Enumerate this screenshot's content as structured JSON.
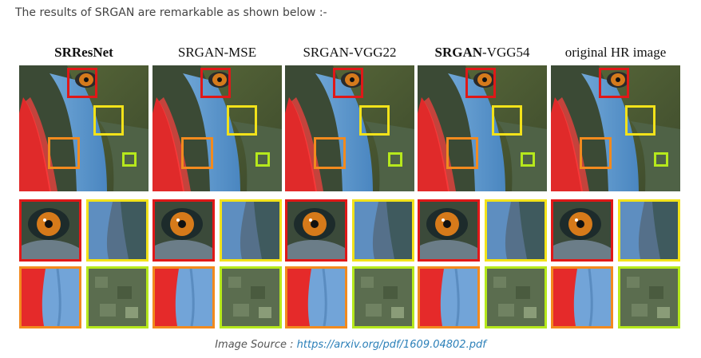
{
  "intro_text": "The results of SRGAN are remarkable as shown below :-",
  "figure": {
    "columns": [
      {
        "title": "SRResNet",
        "bold": true
      },
      {
        "title": "SRGAN-MSE",
        "bold": false
      },
      {
        "title": "SRGAN-VGG22",
        "bold": false
      },
      {
        "title_prefix": "SRGAN",
        "title_suffix": "-VGG54",
        "bold": false
      },
      {
        "title": "original HR image",
        "bold": false
      }
    ],
    "box_colors": {
      "red": "#e01818",
      "yellow": "#f2e21a",
      "orange": "#f28a1e",
      "lime": "#b6e81c"
    }
  },
  "caption": {
    "label": "Image Source : ",
    "link_text": "https://arxiv.org/pdf/1609.04802.pdf"
  }
}
